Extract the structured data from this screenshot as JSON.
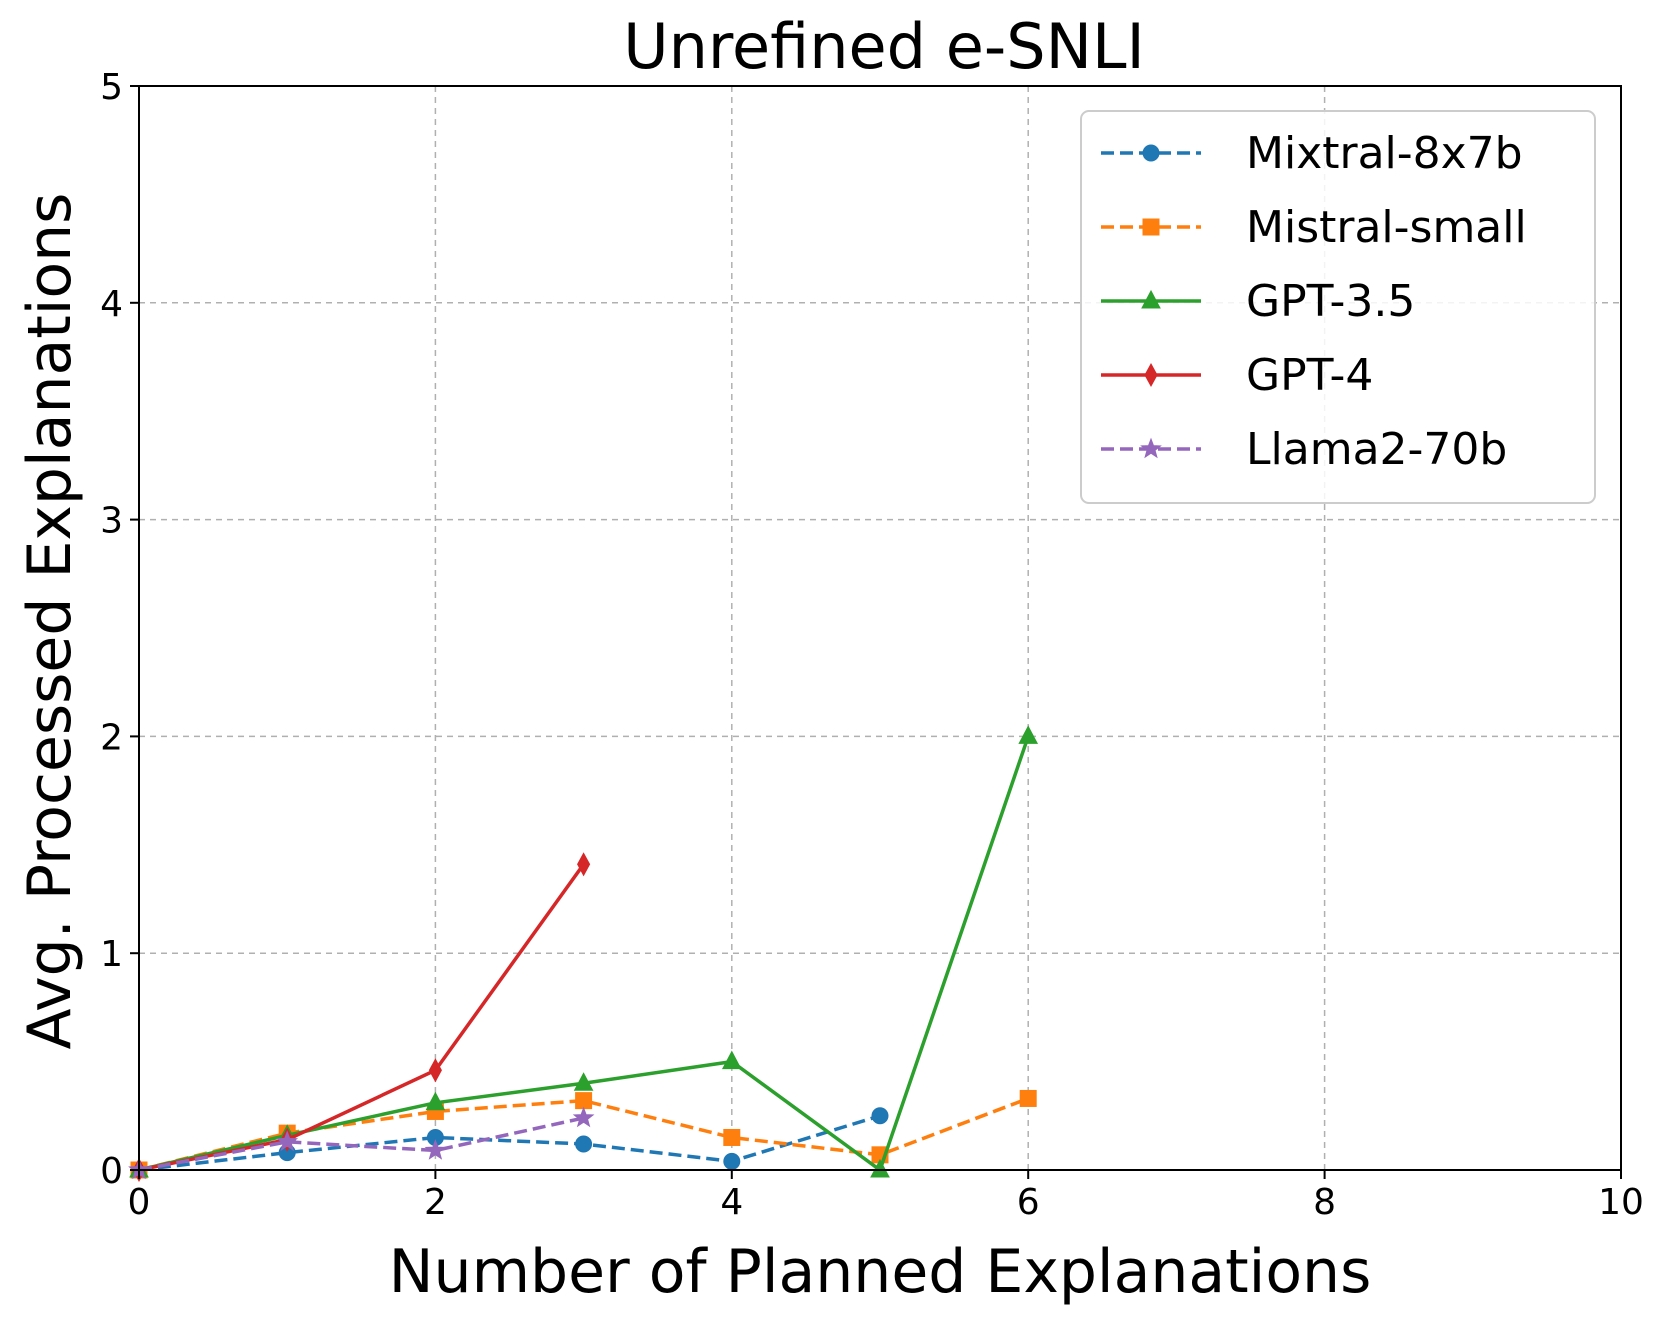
{
  "chart_data": {
    "type": "line",
    "title": "Unrefined e-SNLI",
    "xlabel": "Number of Planned Explanations",
    "ylabel": "Avg. Processed Explanations",
    "xlim": [
      0,
      10
    ],
    "ylim": [
      0,
      5
    ],
    "xticks": [
      0,
      2,
      4,
      6,
      8,
      10
    ],
    "yticks": [
      0,
      1,
      2,
      3,
      4,
      5
    ],
    "grid": true,
    "legend_position": "top-right",
    "series": [
      {
        "name": "Mixtral-8x7b",
        "color": "#1f77b4",
        "dash": "dashed",
        "marker": "circle",
        "x": [
          0,
          1,
          2,
          3,
          4,
          5
        ],
        "y": [
          0,
          0.08,
          0.15,
          0.12,
          0.04,
          0.25
        ]
      },
      {
        "name": "Mistral-small",
        "color": "#ff7f0e",
        "dash": "dashed",
        "marker": "square",
        "x": [
          0,
          1,
          2,
          3,
          4,
          5,
          6
        ],
        "y": [
          0,
          0.17,
          0.27,
          0.32,
          0.15,
          0.07,
          0.33
        ]
      },
      {
        "name": "GPT-3.5",
        "color": "#2ca02c",
        "dash": "solid",
        "marker": "triangle",
        "x": [
          0,
          1,
          2,
          3,
          4,
          5,
          6
        ],
        "y": [
          0,
          0.16,
          0.31,
          0.4,
          0.5,
          0.0,
          2.0
        ]
      },
      {
        "name": "GPT-4",
        "color": "#d62728",
        "dash": "solid",
        "marker": "diamond",
        "x": [
          0,
          1,
          2,
          3
        ],
        "y": [
          0,
          0.14,
          0.46,
          1.41
        ]
      },
      {
        "name": "Llama2-70b",
        "color": "#9467bd",
        "dash": "dashed",
        "marker": "star",
        "x": [
          0,
          1,
          2,
          3
        ],
        "y": [
          0,
          0.13,
          0.09,
          0.24
        ]
      }
    ]
  }
}
